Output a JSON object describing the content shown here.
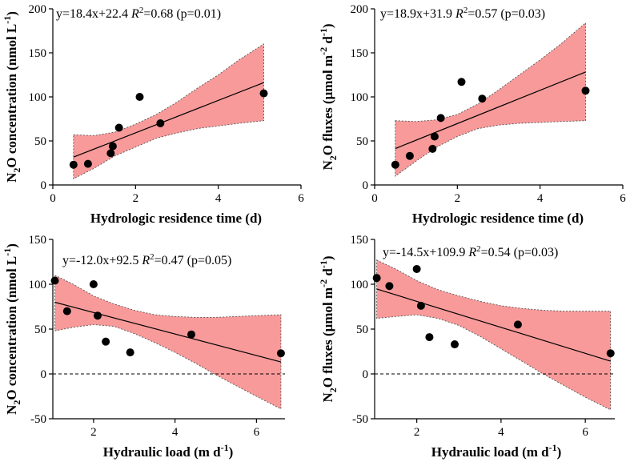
{
  "chart_data": [
    {
      "type": "scatter",
      "xlabel": "Hydrologic residence time (d)",
      "ylabel": "N2O concentration (nmol L-1)",
      "ylabel_parts": {
        "pre": "N",
        "sub": "2",
        "mid": "O concentration (nmol L",
        "sup": "-1",
        "post": ")"
      },
      "equation": {
        "main": "y=18.4x+22.4 ",
        "r": "R",
        "sup": "2",
        "rest": "=0.68 (p=0.01)"
      },
      "xlim": [
        0,
        6
      ],
      "ylim": [
        0,
        200
      ],
      "xticks": [
        0,
        2,
        4,
        6
      ],
      "yticks": [
        0,
        50,
        100,
        150,
        200
      ],
      "zero_line": false,
      "points": {
        "x": [
          0.5,
          0.85,
          1.4,
          1.45,
          1.6,
          2.1,
          2.6,
          5.1
        ],
        "y": [
          23,
          24,
          36,
          44,
          65,
          100,
          70,
          104
        ]
      },
      "fit": {
        "slope": 18.4,
        "intercept": 22.4,
        "x_range": [
          0.5,
          5.1
        ]
      },
      "band": {
        "x": [
          0.5,
          1.0,
          1.5,
          2.0,
          2.5,
          3.0,
          3.5,
          4.0,
          4.5,
          5.1
        ],
        "lower": [
          7,
          19,
          33,
          43,
          53,
          59,
          64,
          67,
          70,
          73
        ],
        "upper": [
          57,
          56,
          60,
          69,
          80,
          94,
          110,
          125,
          142,
          160
        ]
      }
    },
    {
      "type": "scatter",
      "xlabel": "Hydrologic residence time (d)",
      "ylabel": "N2O fluxes (μmol m-2 d-1)",
      "ylabel_parts": {
        "pre": "N",
        "sub": "2",
        "mid": "O fluxes (μmol m",
        "sup": "-2",
        "mid2": " d",
        "sup2": "-1",
        "post": ")"
      },
      "equation": {
        "main": "y=18.9x+31.9 ",
        "r": "R",
        "sup": "2",
        "rest": "=0.57 (p=0.03)"
      },
      "xlim": [
        0,
        6
      ],
      "ylim": [
        0,
        200
      ],
      "xticks": [
        0,
        2,
        4,
        6
      ],
      "yticks": [
        0,
        50,
        100,
        150,
        200
      ],
      "zero_line": false,
      "points": {
        "x": [
          0.5,
          0.85,
          1.4,
          1.45,
          1.6,
          2.1,
          2.6,
          5.1
        ],
        "y": [
          23,
          33,
          41,
          55,
          76,
          117,
          98,
          107
        ]
      },
      "fit": {
        "slope": 18.9,
        "intercept": 31.9,
        "x_range": [
          0.5,
          5.1
        ]
      },
      "band": {
        "x": [
          0.5,
          1.0,
          1.5,
          2.0,
          2.5,
          3.0,
          3.5,
          4.0,
          4.5,
          5.1
        ],
        "lower": [
          10,
          27,
          43,
          55,
          64,
          68,
          70,
          71,
          72,
          73
        ],
        "upper": [
          73,
          72,
          74,
          80,
          92,
          108,
          125,
          142,
          160,
          184
        ]
      }
    },
    {
      "type": "scatter",
      "xlabel": "Hydraulic load (m d-1)",
      "ylabel": "N2O concentration (nmol L-1)",
      "ylabel_parts": {
        "pre": "N",
        "sub": "2",
        "mid": "O concentration (nmol L",
        "sup": "-1",
        "post": ")"
      },
      "xlabel_parts": {
        "pre": "Hydraulic load (m d",
        "sup": "-1",
        "post": ")"
      },
      "equation": {
        "main": "y=-12.0x+92.5 ",
        "r": "R",
        "sup": "2",
        "rest": "=0.47 (p=0.05)"
      },
      "xlim": [
        1,
        6.7
      ],
      "ylim": [
        -50,
        150
      ],
      "xticks": [
        2,
        4,
        6
      ],
      "yticks": [
        -50,
        0,
        50,
        100,
        150
      ],
      "zero_line": true,
      "points": {
        "x": [
          1.05,
          1.35,
          2.0,
          2.1,
          2.3,
          2.9,
          4.4,
          6.6
        ],
        "y": [
          104,
          70,
          100,
          65,
          36,
          24,
          44,
          23
        ]
      },
      "fit": {
        "slope": -12.0,
        "intercept": 92.5,
        "x_range": [
          1.05,
          6.6
        ]
      },
      "band": {
        "x": [
          1.05,
          1.5,
          2.0,
          2.5,
          3.0,
          3.5,
          4.0,
          4.5,
          5.0,
          5.5,
          6.0,
          6.6
        ],
        "lower": [
          48,
          52,
          55,
          53,
          45,
          35,
          24,
          12,
          -1,
          -13,
          -25,
          -39
        ],
        "upper": [
          110,
          100,
          87,
          78,
          71,
          66,
          64,
          63,
          63,
          64,
          65,
          66
        ]
      }
    },
    {
      "type": "scatter",
      "xlabel": "Hydraulic load (m d-1)",
      "ylabel": "N2O fluxes (μmol m-2 d-1)",
      "ylabel_parts": {
        "pre": "N",
        "sub": "2",
        "mid": "O fluxes (μmol m",
        "sup": "-2",
        "mid2": " d",
        "sup2": "-1",
        "post": ")"
      },
      "xlabel_parts": {
        "pre": "Hydraulic load (m d",
        "sup": "-1",
        "post": ")"
      },
      "equation": {
        "main": "y=-14.5x+109.9 ",
        "r": "R",
        "sup": "2",
        "rest": "=0.54 (p=0.03)"
      },
      "xlim": [
        1,
        6.7
      ],
      "ylim": [
        -50,
        150
      ],
      "xticks": [
        2,
        4,
        6
      ],
      "yticks": [
        -50,
        0,
        50,
        100,
        150
      ],
      "zero_line": true,
      "points": {
        "x": [
          1.05,
          1.35,
          2.0,
          2.1,
          2.3,
          2.9,
          4.4,
          6.6
        ],
        "y": [
          107,
          98,
          117,
          76,
          41,
          33,
          55,
          23
        ]
      },
      "fit": {
        "slope": -14.5,
        "intercept": 109.9,
        "x_range": [
          1.05,
          6.6
        ]
      },
      "band": {
        "x": [
          1.05,
          1.5,
          2.0,
          2.5,
          3.0,
          3.5,
          4.0,
          4.5,
          5.0,
          5.5,
          6.0,
          6.6
        ],
        "lower": [
          62,
          64,
          66,
          62,
          54,
          42,
          28,
          14,
          0,
          -13,
          -26,
          -40
        ],
        "upper": [
          127,
          117,
          104,
          94,
          87,
          81,
          76,
          73,
          71,
          70,
          70,
          70
        ]
      }
    }
  ]
}
